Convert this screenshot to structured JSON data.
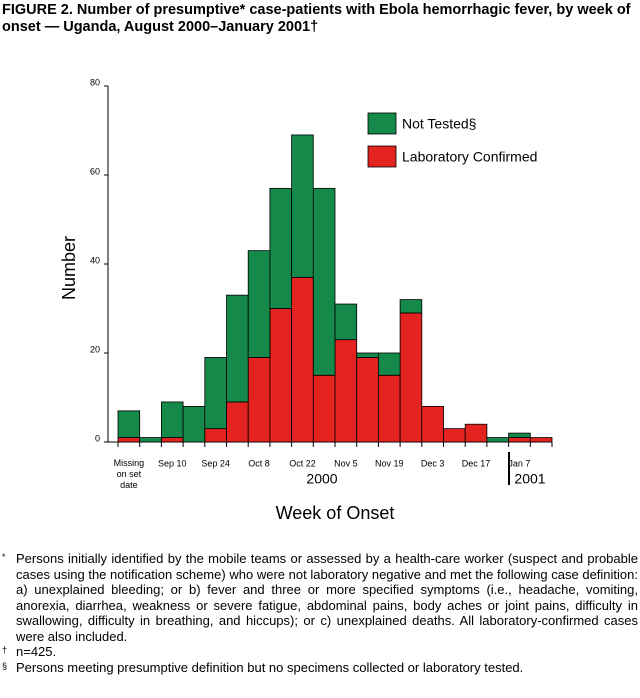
{
  "chart_data": {
    "type": "stacked_bar",
    "title": "FIGURE 2. Number of presumptive* case-patients with Ebola hemorrhagic fever, by week of onset — Uganda, August 2000–January 2001†",
    "y_label": "Number",
    "x_label": "Week of Onset",
    "categories": [
      "Missing\non set\ndate",
      null,
      "Sep 10",
      null,
      "Sep 24",
      null,
      "Oct 8",
      null,
      "Oct 22",
      null,
      "Nov 5",
      null,
      "Nov 19",
      null,
      "Dec 3",
      null,
      "Dec 17",
      null,
      "Jan 7",
      null
    ],
    "x_group_labels": [
      "2000",
      "2001"
    ],
    "series": [
      {
        "name": "Laboratory Confirmed",
        "color": "#e3231f",
        "values": [
          1,
          0,
          1,
          0,
          3,
          9,
          19,
          30,
          37,
          15,
          23,
          19,
          15,
          29,
          8,
          3,
          4,
          0,
          1,
          1
        ]
      },
      {
        "name": "Not Tested§",
        "color": "#14894a",
        "values": [
          6,
          1,
          8,
          8,
          16,
          24,
          24,
          27,
          32,
          42,
          8,
          1,
          5,
          3,
          0,
          0,
          0,
          1,
          1,
          0
        ]
      }
    ],
    "ylim": [
      0,
      80
    ],
    "yticks": [
      0,
      20,
      40,
      60,
      80
    ],
    "grid": false,
    "footnotes": [
      {
        "mark": "*",
        "text": "Persons initially identified by the mobile teams or assessed by a health-care worker (suspect and probable cases using the notification scheme) who were not laboratory negative and met the following case definition: a) unexplained bleeding; or b) fever and three or more specified symptoms (i.e., headache, vomiting, anorexia, diarrhea, weakness or severe fatigue, abdominal pains, body aches or joint pains, difficulty in swallowing, difficulty in breathing, and hiccups); or c) unexplained deaths. All laboratory-confirmed cases were also included."
      },
      {
        "mark": "†",
        "text": "n=425."
      },
      {
        "mark": "§",
        "text": "Persons meeting presumptive definition but no specimens collected or laboratory tested."
      }
    ]
  }
}
